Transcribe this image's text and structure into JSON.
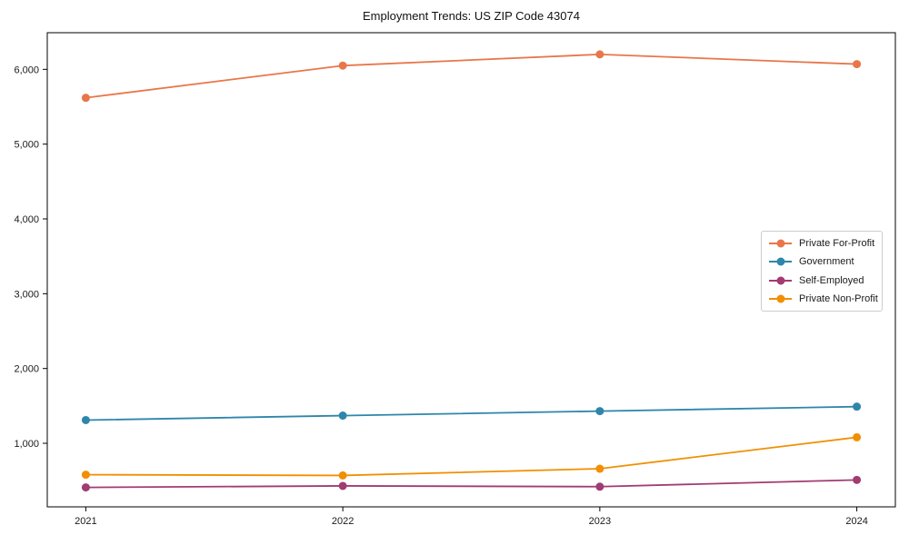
{
  "chart_data": {
    "type": "line",
    "title": "Employment Trends: US ZIP Code 43074",
    "x": [
      2021,
      2022,
      2023,
      2024
    ],
    "x_tick_labels": [
      "2021",
      "2022",
      "2023",
      "2024"
    ],
    "series": [
      {
        "name": "Private For-Profit",
        "color": "#E8764A",
        "values": [
          5620,
          6050,
          6200,
          6070
        ]
      },
      {
        "name": "Government",
        "color": "#2E86AB",
        "values": [
          1310,
          1370,
          1430,
          1490
        ]
      },
      {
        "name": "Self-Employed",
        "color": "#A23B72",
        "values": [
          410,
          430,
          420,
          510
        ]
      },
      {
        "name": "Private Non-Profit",
        "color": "#F18F01",
        "values": [
          580,
          570,
          660,
          1080
        ]
      }
    ],
    "xlim": [
      2020.85,
      2024.15
    ],
    "ylim": [
      150,
      6490
    ],
    "yticks": [
      1000,
      2000,
      3000,
      4000,
      5000,
      6000
    ],
    "ytick_labels": [
      "1,000",
      "2,000",
      "3,000",
      "4,000",
      "5,000",
      "6,000"
    ],
    "grid": false,
    "legend_position": "center-right",
    "marker": "circle",
    "axis_color": "#000000",
    "tick_label_color": "#1a1a1a"
  }
}
